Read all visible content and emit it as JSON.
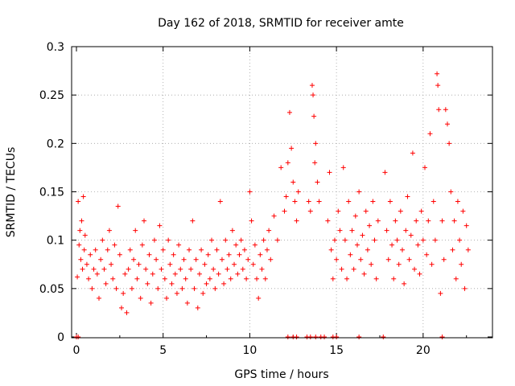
{
  "chart_data": {
    "type": "scatter",
    "title": "Day 162 of 2018, SRMTID for receiver amte",
    "xlabel": "GPS time / hours",
    "ylabel": "SRMTID / TECUs",
    "xlim": [
      0,
      24
    ],
    "ylim": [
      0,
      0.3
    ],
    "xticks": [
      0,
      5,
      10,
      15,
      20
    ],
    "yticks": [
      0,
      0.05,
      0.1,
      0.15,
      0.2,
      0.25,
      0.3
    ],
    "xtick_labels": [
      "0",
      "5",
      "10",
      "15",
      "20"
    ],
    "ytick_labels": [
      "0",
      "0.05",
      "0.1",
      "0.15",
      "0.2",
      "0.25",
      "0.3"
    ],
    "grid": true,
    "marker": "+",
    "marker_color": "#ff0000",
    "series": [
      {
        "name": "SRMTID",
        "points": [
          [
            0.0,
            0.0
          ],
          [
            0.1,
            0.0
          ],
          [
            12.2,
            0.0
          ],
          [
            12.5,
            0.0
          ],
          [
            12.7,
            0.0
          ],
          [
            13.3,
            0.0
          ],
          [
            13.5,
            0.0
          ],
          [
            13.8,
            0.0
          ],
          [
            14.1,
            0.0
          ],
          [
            14.3,
            0.0
          ],
          [
            14.8,
            0.0
          ],
          [
            15.0,
            0.0
          ],
          [
            16.3,
            0.0
          ],
          [
            17.7,
            0.0
          ],
          [
            21.1,
            0.0
          ],
          [
            0.05,
            0.062
          ],
          [
            0.1,
            0.14
          ],
          [
            0.15,
            0.095
          ],
          [
            0.2,
            0.11
          ],
          [
            0.25,
            0.08
          ],
          [
            0.3,
            0.12
          ],
          [
            0.35,
            0.07
          ],
          [
            0.4,
            0.145
          ],
          [
            0.45,
            0.09
          ],
          [
            0.5,
            0.105
          ],
          [
            0.6,
            0.075
          ],
          [
            0.7,
            0.06
          ],
          [
            0.8,
            0.085
          ],
          [
            0.9,
            0.05
          ],
          [
            1.0,
            0.07
          ],
          [
            1.1,
            0.09
          ],
          [
            1.2,
            0.065
          ],
          [
            1.3,
            0.04
          ],
          [
            1.4,
            0.08
          ],
          [
            1.5,
            0.1
          ],
          [
            1.6,
            0.07
          ],
          [
            1.7,
            0.055
          ],
          [
            1.8,
            0.09
          ],
          [
            1.9,
            0.11
          ],
          [
            2.0,
            0.075
          ],
          [
            2.1,
            0.06
          ],
          [
            2.2,
            0.095
          ],
          [
            2.3,
            0.05
          ],
          [
            2.4,
            0.135
          ],
          [
            2.5,
            0.085
          ],
          [
            2.6,
            0.03
          ],
          [
            2.7,
            0.045
          ],
          [
            2.8,
            0.065
          ],
          [
            2.9,
            0.025
          ],
          [
            3.0,
            0.07
          ],
          [
            3.1,
            0.09
          ],
          [
            3.2,
            0.05
          ],
          [
            3.3,
            0.08
          ],
          [
            3.4,
            0.11
          ],
          [
            3.5,
            0.06
          ],
          [
            3.6,
            0.075
          ],
          [
            3.7,
            0.04
          ],
          [
            3.8,
            0.095
          ],
          [
            3.9,
            0.12
          ],
          [
            4.0,
            0.07
          ],
          [
            4.1,
            0.055
          ],
          [
            4.2,
            0.085
          ],
          [
            4.3,
            0.035
          ],
          [
            4.4,
            0.065
          ],
          [
            4.5,
            0.1
          ],
          [
            4.6,
            0.08
          ],
          [
            4.7,
            0.05
          ],
          [
            4.8,
            0.115
          ],
          [
            4.9,
            0.07
          ],
          [
            5.0,
            0.09
          ],
          [
            5.1,
            0.06
          ],
          [
            5.2,
            0.04
          ],
          [
            5.3,
            0.1
          ],
          [
            5.4,
            0.075
          ],
          [
            5.5,
            0.055
          ],
          [
            5.6,
            0.085
          ],
          [
            5.7,
            0.065
          ],
          [
            5.8,
            0.045
          ],
          [
            5.9,
            0.095
          ],
          [
            6.0,
            0.07
          ],
          [
            6.1,
            0.05
          ],
          [
            6.2,
            0.08
          ],
          [
            6.3,
            0.06
          ],
          [
            6.4,
            0.035
          ],
          [
            6.5,
            0.09
          ],
          [
            6.6,
            0.07
          ],
          [
            6.7,
            0.12
          ],
          [
            6.8,
            0.05
          ],
          [
            6.9,
            0.08
          ],
          [
            7.0,
            0.03
          ],
          [
            7.1,
            0.065
          ],
          [
            7.2,
            0.09
          ],
          [
            7.3,
            0.045
          ],
          [
            7.4,
            0.075
          ],
          [
            7.5,
            0.055
          ],
          [
            7.6,
            0.085
          ],
          [
            7.7,
            0.06
          ],
          [
            7.8,
            0.1
          ],
          [
            7.9,
            0.07
          ],
          [
            8.0,
            0.05
          ],
          [
            8.1,
            0.09
          ],
          [
            8.2,
            0.065
          ],
          [
            8.3,
            0.14
          ],
          [
            8.4,
            0.08
          ],
          [
            8.5,
            0.055
          ],
          [
            8.6,
            0.1
          ],
          [
            8.7,
            0.07
          ],
          [
            8.8,
            0.085
          ],
          [
            8.9,
            0.06
          ],
          [
            9.0,
            0.11
          ],
          [
            9.1,
            0.075
          ],
          [
            9.2,
            0.095
          ],
          [
            9.3,
            0.065
          ],
          [
            9.4,
            0.085
          ],
          [
            9.5,
            0.1
          ],
          [
            9.6,
            0.07
          ],
          [
            9.7,
            0.09
          ],
          [
            9.8,
            0.06
          ],
          [
            9.9,
            0.08
          ],
          [
            10.0,
            0.15
          ],
          [
            10.1,
            0.12
          ],
          [
            10.2,
            0.075
          ],
          [
            10.3,
            0.095
          ],
          [
            10.4,
            0.06
          ],
          [
            10.5,
            0.04
          ],
          [
            10.6,
            0.085
          ],
          [
            10.7,
            0.07
          ],
          [
            10.8,
            0.1
          ],
          [
            10.9,
            0.06
          ],
          [
            11.0,
            0.09
          ],
          [
            11.1,
            0.11
          ],
          [
            11.2,
            0.08
          ],
          [
            11.4,
            0.125
          ],
          [
            11.6,
            0.1
          ],
          [
            11.8,
            0.175
          ],
          [
            12.0,
            0.13
          ],
          [
            12.1,
            0.145
          ],
          [
            12.2,
            0.18
          ],
          [
            12.3,
            0.232
          ],
          [
            12.4,
            0.195
          ],
          [
            12.5,
            0.16
          ],
          [
            12.6,
            0.14
          ],
          [
            12.7,
            0.12
          ],
          [
            12.8,
            0.15
          ],
          [
            13.4,
            0.14
          ],
          [
            13.5,
            0.13
          ],
          [
            13.6,
            0.26
          ],
          [
            13.65,
            0.25
          ],
          [
            13.7,
            0.228
          ],
          [
            13.75,
            0.18
          ],
          [
            13.8,
            0.2
          ],
          [
            13.9,
            0.16
          ],
          [
            14.0,
            0.14
          ],
          [
            14.5,
            0.12
          ],
          [
            14.6,
            0.17
          ],
          [
            14.7,
            0.09
          ],
          [
            14.8,
            0.06
          ],
          [
            14.9,
            0.1
          ],
          [
            15.0,
            0.08
          ],
          [
            15.1,
            0.13
          ],
          [
            15.2,
            0.11
          ],
          [
            15.3,
            0.07
          ],
          [
            15.4,
            0.175
          ],
          [
            15.5,
            0.1
          ],
          [
            15.6,
            0.06
          ],
          [
            15.7,
            0.14
          ],
          [
            15.8,
            0.085
          ],
          [
            15.9,
            0.11
          ],
          [
            16.0,
            0.07
          ],
          [
            16.1,
            0.125
          ],
          [
            16.2,
            0.095
          ],
          [
            16.3,
            0.15
          ],
          [
            16.4,
            0.08
          ],
          [
            16.5,
            0.105
          ],
          [
            16.6,
            0.065
          ],
          [
            16.7,
            0.13
          ],
          [
            16.8,
            0.09
          ],
          [
            16.9,
            0.115
          ],
          [
            17.0,
            0.075
          ],
          [
            17.1,
            0.14
          ],
          [
            17.2,
            0.1
          ],
          [
            17.3,
            0.06
          ],
          [
            17.4,
            0.12
          ],
          [
            17.8,
            0.17
          ],
          [
            17.9,
            0.11
          ],
          [
            18.0,
            0.08
          ],
          [
            18.1,
            0.14
          ],
          [
            18.2,
            0.095
          ],
          [
            18.3,
            0.06
          ],
          [
            18.4,
            0.12
          ],
          [
            18.5,
            0.1
          ],
          [
            18.6,
            0.075
          ],
          [
            18.7,
            0.13
          ],
          [
            18.8,
            0.09
          ],
          [
            18.9,
            0.055
          ],
          [
            19.0,
            0.11
          ],
          [
            19.1,
            0.145
          ],
          [
            19.2,
            0.08
          ],
          [
            19.3,
            0.105
          ],
          [
            19.4,
            0.19
          ],
          [
            19.5,
            0.07
          ],
          [
            19.6,
            0.12
          ],
          [
            19.7,
            0.095
          ],
          [
            19.8,
            0.065
          ],
          [
            19.9,
            0.13
          ],
          [
            20.0,
            0.1
          ],
          [
            20.1,
            0.175
          ],
          [
            20.2,
            0.085
          ],
          [
            20.3,
            0.12
          ],
          [
            20.4,
            0.21
          ],
          [
            20.5,
            0.075
          ],
          [
            20.6,
            0.14
          ],
          [
            20.7,
            0.1
          ],
          [
            20.8,
            0.272
          ],
          [
            20.85,
            0.26
          ],
          [
            20.9,
            0.235
          ],
          [
            21.0,
            0.045
          ],
          [
            21.1,
            0.12
          ],
          [
            21.2,
            0.08
          ],
          [
            21.3,
            0.235
          ],
          [
            21.4,
            0.22
          ],
          [
            21.5,
            0.2
          ],
          [
            21.6,
            0.15
          ],
          [
            21.7,
            0.09
          ],
          [
            21.8,
            0.12
          ],
          [
            21.9,
            0.06
          ],
          [
            22.0,
            0.14
          ],
          [
            22.1,
            0.1
          ],
          [
            22.2,
            0.075
          ],
          [
            22.3,
            0.13
          ],
          [
            22.4,
            0.05
          ],
          [
            22.5,
            0.115
          ],
          [
            22.6,
            0.09
          ]
        ]
      }
    ]
  }
}
